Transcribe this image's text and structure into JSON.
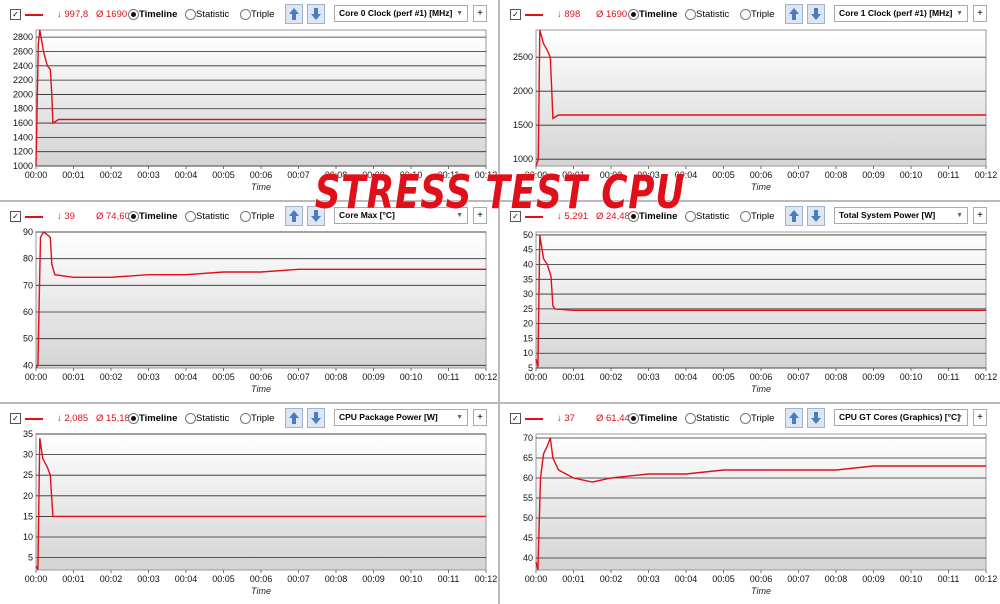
{
  "overlay_title": "STRESS TEST CPU",
  "colors": {
    "series": "#e0101a"
  },
  "toolbar_labels": {
    "timeline": "Timeline",
    "statistic": "Statistic",
    "triple": "Triple",
    "plus": "+"
  },
  "panels": [
    {
      "min": "↓ 997,8",
      "avg": "Ø 1690",
      "sensor": "Core 0 Clock (perf #1) [MHz]"
    },
    {
      "min": "↓ 898",
      "avg": "Ø 1690",
      "sensor": "Core 1 Clock (perf #1) [MHz]"
    },
    {
      "min": "↓ 39",
      "avg": "Ø 74,60",
      "sensor": "Core Max [°C]"
    },
    {
      "min": "↓ 5,291",
      "avg": "Ø 24,48",
      "sensor": "Total System Power [W]"
    },
    {
      "min": "↓ 2,085",
      "avg": "Ø 15,18",
      "sensor": "CPU Package Power [W]"
    },
    {
      "min": "↓ 37",
      "avg": "Ø 61,44",
      "sensor": "CPU GT Cores (Graphics) [°C]"
    }
  ],
  "chart_data": [
    {
      "type": "line",
      "title": "Core 0 Clock (perf #1) [MHz]",
      "xlabel": "Time",
      "ylabel": "",
      "x_ticks": [
        "00:00",
        "00:01",
        "00:02",
        "00:03",
        "00:04",
        "00:05",
        "00:06",
        "00:07",
        "00:08",
        "00:09",
        "00:10",
        "00:11",
        "00:12"
      ],
      "ylim": [
        1000,
        2900
      ],
      "yticks": [
        1000,
        1200,
        1400,
        1600,
        1800,
        2000,
        2200,
        2400,
        2600,
        2800
      ],
      "series": [
        {
          "x": [
            0,
            0.06,
            0.1,
            0.2,
            0.3,
            0.38,
            0.42,
            0.45,
            0.6,
            1,
            2,
            3,
            4,
            5,
            6,
            7,
            8,
            9,
            10,
            11,
            12
          ],
          "y": [
            1000,
            2700,
            2900,
            2600,
            2400,
            2350,
            2000,
            1600,
            1650,
            1650,
            1650,
            1650,
            1650,
            1650,
            1650,
            1650,
            1650,
            1650,
            1650,
            1650,
            1650
          ]
        }
      ]
    },
    {
      "type": "line",
      "title": "Core 1 Clock (perf #1) [MHz]",
      "xlabel": "Time",
      "ylabel": "",
      "x_ticks": [
        "00:00",
        "00:01",
        "00:02",
        "00:03",
        "00:04",
        "00:05",
        "00:06",
        "00:07",
        "00:08",
        "00:09",
        "00:10",
        "00:11",
        "00:12"
      ],
      "ylim": [
        900,
        2900
      ],
      "yticks": [
        1000,
        1500,
        2000,
        2500
      ],
      "series": [
        {
          "x": [
            0,
            0.06,
            0.1,
            0.2,
            0.3,
            0.38,
            0.42,
            0.45,
            0.6,
            1,
            2,
            3,
            4,
            5,
            6,
            7,
            8,
            9,
            10,
            11,
            12
          ],
          "y": [
            900,
            1000,
            2900,
            2700,
            2600,
            2500,
            2000,
            1600,
            1650,
            1650,
            1650,
            1650,
            1650,
            1650,
            1650,
            1650,
            1650,
            1650,
            1650,
            1650,
            1650
          ]
        }
      ]
    },
    {
      "type": "line",
      "title": "Core Max [°C]",
      "xlabel": "Time",
      "ylabel": "",
      "x_ticks": [
        "00:00",
        "00:01",
        "00:02",
        "00:03",
        "00:04",
        "00:05",
        "00:06",
        "00:07",
        "00:08",
        "00:09",
        "00:10",
        "00:11",
        "00:12"
      ],
      "ylim": [
        39,
        90
      ],
      "yticks": [
        40,
        50,
        60,
        70,
        80,
        90
      ],
      "series": [
        {
          "x": [
            0,
            0.05,
            0.12,
            0.2,
            0.3,
            0.38,
            0.42,
            0.5,
            1,
            2,
            3,
            4,
            5,
            6,
            7,
            8,
            9,
            10,
            11,
            12
          ],
          "y": [
            39,
            40,
            88,
            90,
            89,
            88,
            78,
            74,
            73,
            73,
            74,
            74,
            75,
            75,
            76,
            76,
            76,
            76,
            76,
            76
          ]
        }
      ]
    },
    {
      "type": "line",
      "title": "Total System Power [W]",
      "xlabel": "Time",
      "ylabel": "",
      "x_ticks": [
        "00:00",
        "00:01",
        "00:02",
        "00:03",
        "00:04",
        "00:05",
        "00:06",
        "00:07",
        "00:08",
        "00:09",
        "00:10",
        "00:11",
        "00:12"
      ],
      "ylim": [
        5,
        51
      ],
      "yticks": [
        5,
        10,
        15,
        20,
        25,
        30,
        35,
        40,
        45,
        50
      ],
      "series": [
        {
          "x": [
            0,
            0.05,
            0.1,
            0.2,
            0.3,
            0.4,
            0.45,
            0.5,
            1,
            2,
            3,
            4,
            5,
            6,
            7,
            8,
            9,
            10,
            11,
            12
          ],
          "y": [
            8,
            5.3,
            50,
            42,
            40,
            36,
            26,
            25,
            24.5,
            24.5,
            24.5,
            24.5,
            24.5,
            24.5,
            24.5,
            24.5,
            24.5,
            24.5,
            24.5,
            24.5
          ]
        }
      ]
    },
    {
      "type": "line",
      "title": "CPU Package Power [W]",
      "xlabel": "Time",
      "ylabel": "",
      "x_ticks": [
        "00:00",
        "00:01",
        "00:02",
        "00:03",
        "00:04",
        "00:05",
        "00:06",
        "00:07",
        "00:08",
        "00:09",
        "00:10",
        "00:11",
        "00:12"
      ],
      "ylim": [
        2,
        35
      ],
      "yticks": [
        5,
        10,
        15,
        20,
        25,
        30,
        35
      ],
      "series": [
        {
          "x": [
            0,
            0.05,
            0.1,
            0.18,
            0.3,
            0.38,
            0.45,
            0.5,
            1,
            2,
            3,
            4,
            5,
            6,
            7,
            8,
            9,
            10,
            11,
            12
          ],
          "y": [
            3,
            2.1,
            34,
            29,
            27,
            25,
            15,
            15,
            15,
            15,
            15,
            15,
            15,
            15,
            15,
            15,
            15,
            15,
            15,
            15
          ]
        }
      ]
    },
    {
      "type": "line",
      "title": "CPU GT Cores (Graphics) [°C]",
      "xlabel": "Time",
      "ylabel": "",
      "x_ticks": [
        "00:00",
        "00:01",
        "00:02",
        "00:03",
        "00:04",
        "00:05",
        "00:06",
        "00:07",
        "00:08",
        "00:09",
        "00:10",
        "00:11",
        "00:12"
      ],
      "ylim": [
        37,
        71
      ],
      "yticks": [
        40,
        45,
        50,
        55,
        60,
        65,
        70
      ],
      "series": [
        {
          "x": [
            0,
            0.05,
            0.12,
            0.2,
            0.3,
            0.38,
            0.45,
            0.6,
            1,
            1.5,
            2,
            3,
            4,
            5,
            6,
            7,
            8,
            9,
            10,
            11,
            12
          ],
          "y": [
            39,
            37,
            60,
            66,
            68,
            70,
            65,
            62,
            60,
            59,
            60,
            61,
            61,
            62,
            62,
            62,
            62,
            63,
            63,
            63,
            63
          ]
        }
      ]
    }
  ]
}
